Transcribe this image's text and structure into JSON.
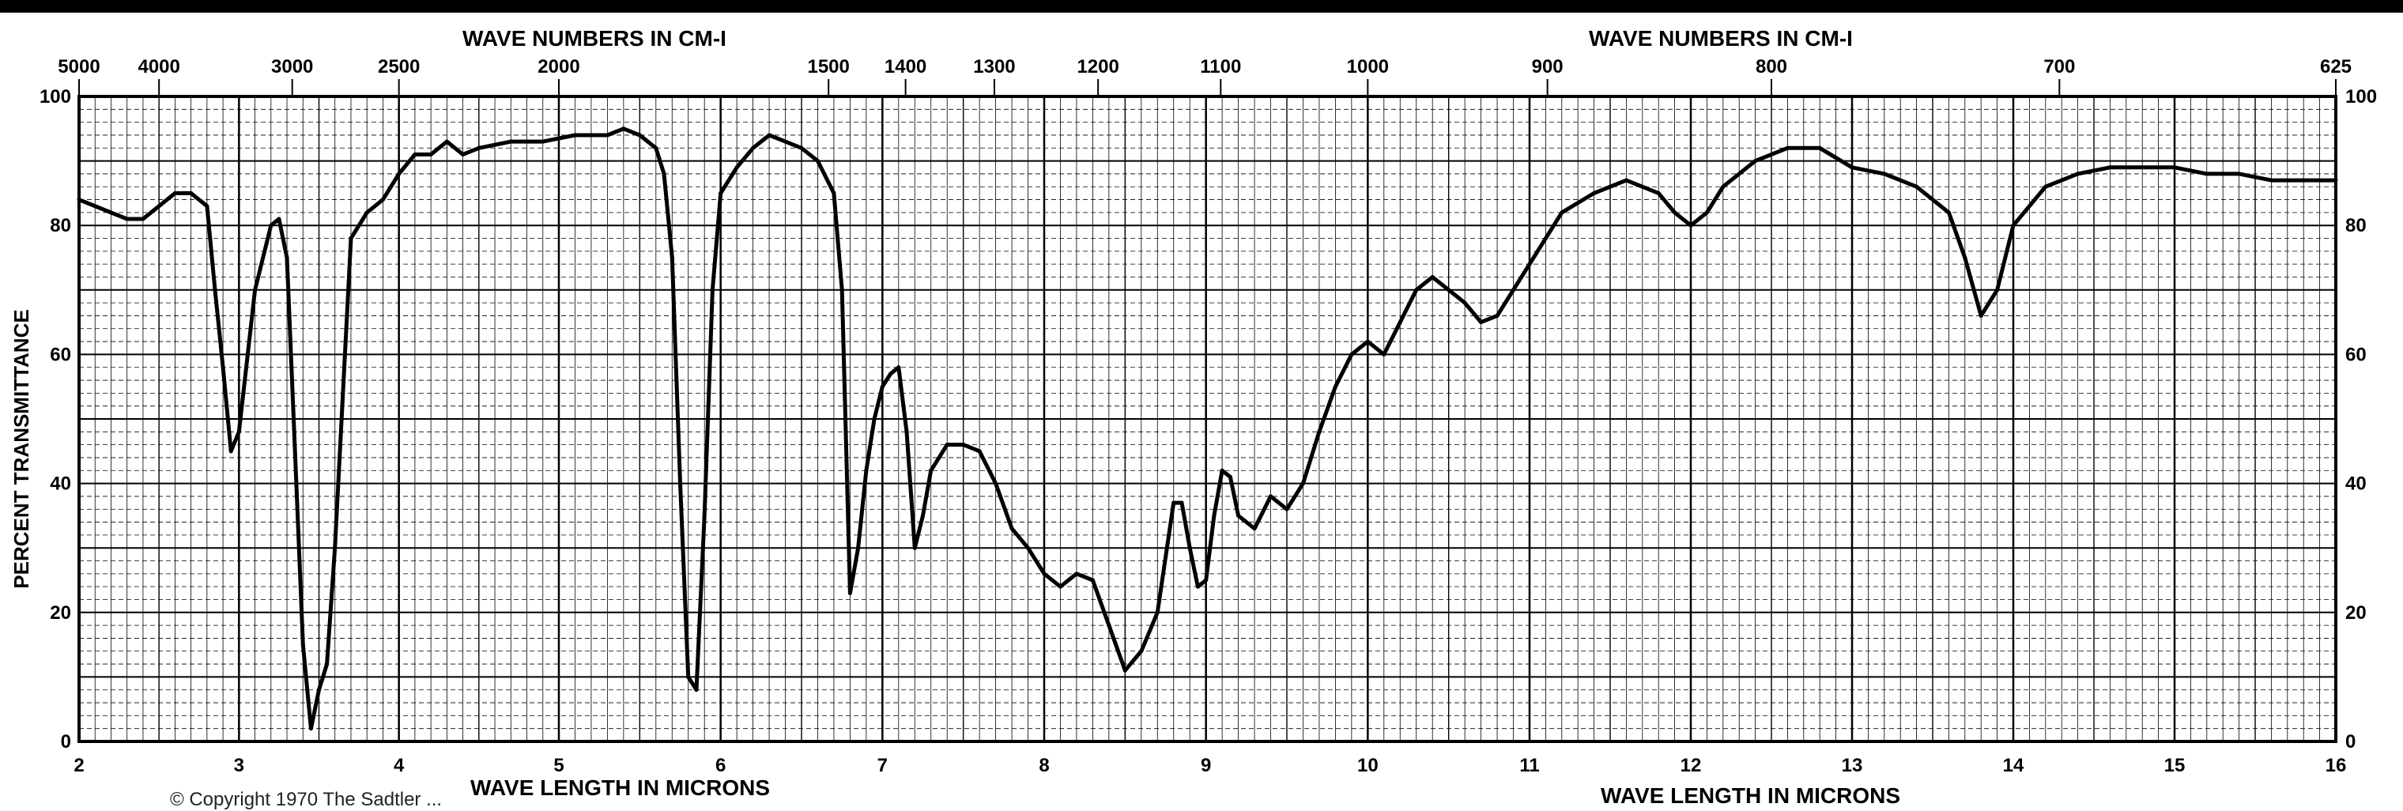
{
  "header": {
    "top_label_left": "WAVE NUMBERS IN CM-I",
    "top_label_right": "WAVE NUMBERS IN CM-I",
    "bottom_label_left": "WAVE LENGTH IN MICRONS",
    "bottom_label_right": "WAVE LENGTH IN MICRONS",
    "footnote": "© Copyright 1970 The Sadtler ..."
  },
  "colors": {
    "grid": "#000000",
    "curve": "#000000",
    "background": "#ffffff"
  },
  "chart_data": {
    "type": "line",
    "title": "",
    "xlabel": "WAVE LENGTH IN MICRONS",
    "ylabel": "PERCENT TRANSMITTANCE",
    "xlim": [
      2,
      16
    ],
    "ylim": [
      0,
      100
    ],
    "grid": true,
    "x_ticks": [
      "2",
      "3",
      "4",
      "5",
      "6",
      "7",
      "8",
      "9",
      "10",
      "11",
      "12",
      "13",
      "14",
      "15",
      "16"
    ],
    "y_ticks": [
      "0",
      "20",
      "40",
      "60",
      "80",
      "100"
    ],
    "top_axis_ticks_left": [
      {
        "label": "5000",
        "wavelength": 2.0
      },
      {
        "label": "4000",
        "wavelength": 2.5
      },
      {
        "label": "3000",
        "wavelength": 3.333
      },
      {
        "label": "2500",
        "wavelength": 4.0
      },
      {
        "label": "2000",
        "wavelength": 5.0
      },
      {
        "label": "1500",
        "wavelength": 6.667
      },
      {
        "label": "1400",
        "wavelength": 7.143
      },
      {
        "label": "1300",
        "wavelength": 7.692
      },
      {
        "label": "1200",
        "wavelength": 8.333
      },
      {
        "label": "1100",
        "wavelength": 9.091
      },
      {
        "label": "1000",
        "wavelength": 10.0
      }
    ],
    "top_axis_ticks_right": [
      {
        "label": "900",
        "wavelength": 11.111
      },
      {
        "label": "800",
        "wavelength": 12.5
      },
      {
        "label": "700",
        "wavelength": 14.286
      },
      {
        "label": "625",
        "wavelength": 16.0
      }
    ],
    "x": [
      2.0,
      2.2,
      2.3,
      2.4,
      2.5,
      2.6,
      2.7,
      2.8,
      2.85,
      2.9,
      2.95,
      3.0,
      3.1,
      3.2,
      3.25,
      3.3,
      3.35,
      3.4,
      3.45,
      3.5,
      3.55,
      3.6,
      3.7,
      3.8,
      3.9,
      4.0,
      4.1,
      4.2,
      4.3,
      4.4,
      4.5,
      4.7,
      4.9,
      5.1,
      5.3,
      5.4,
      5.5,
      5.6,
      5.65,
      5.7,
      5.75,
      5.8,
      5.85,
      5.9,
      5.95,
      6.0,
      6.1,
      6.2,
      6.3,
      6.4,
      6.5,
      6.6,
      6.7,
      6.75,
      6.8,
      6.85,
      6.9,
      6.95,
      7.0,
      7.05,
      7.1,
      7.15,
      7.2,
      7.25,
      7.3,
      7.4,
      7.5,
      7.6,
      7.7,
      7.8,
      7.9,
      8.0,
      8.1,
      8.2,
      8.3,
      8.4,
      8.5,
      8.6,
      8.7,
      8.8,
      8.85,
      8.9,
      8.95,
      9.0,
      9.05,
      9.1,
      9.15,
      9.2,
      9.3,
      9.4,
      9.5,
      9.6,
      9.7,
      9.8,
      9.9,
      10.0,
      10.1,
      10.2,
      10.3,
      10.4,
      10.5,
      10.6,
      10.7,
      10.8,
      10.9,
      11.0,
      11.2,
      11.4,
      11.6,
      11.8,
      11.9,
      12.0,
      12.1,
      12.2,
      12.4,
      12.6,
      12.8,
      13.0,
      13.2,
      13.4,
      13.6,
      13.7,
      13.8,
      13.85,
      13.9,
      14.0,
      14.2,
      14.4,
      14.6,
      14.8,
      15.0,
      15.2,
      15.4,
      15.6,
      15.8,
      16.0
    ],
    "series": [
      {
        "values": [
          84,
          82,
          81,
          81,
          83,
          85,
          85,
          83,
          70,
          58,
          45,
          48,
          70,
          80,
          81,
          75,
          45,
          15,
          2,
          8,
          12,
          30,
          78,
          82,
          84,
          88,
          91,
          91,
          93,
          91,
          92,
          93,
          93,
          94,
          94,
          95,
          94,
          92,
          88,
          75,
          40,
          10,
          8,
          35,
          70,
          85,
          89,
          92,
          94,
          93,
          92,
          90,
          85,
          70,
          23,
          30,
          42,
          50,
          55,
          57,
          58,
          48,
          30,
          35,
          42,
          46,
          46,
          45,
          40,
          33,
          30,
          26,
          24,
          26,
          25,
          18,
          11,
          14,
          20,
          37,
          37,
          30,
          24,
          25,
          35,
          42,
          41,
          35,
          33,
          38,
          36,
          40,
          48,
          55,
          60,
          62,
          60,
          65,
          70,
          72,
          70,
          68,
          65,
          66,
          70,
          74,
          82,
          85,
          87,
          85,
          82,
          80,
          82,
          86,
          90,
          92,
          92,
          89,
          88,
          86,
          82,
          75,
          66,
          68,
          70,
          80,
          86,
          88,
          89,
          89,
          89,
          88,
          88,
          87,
          87,
          87
        ]
      }
    ],
    "annotations": []
  }
}
